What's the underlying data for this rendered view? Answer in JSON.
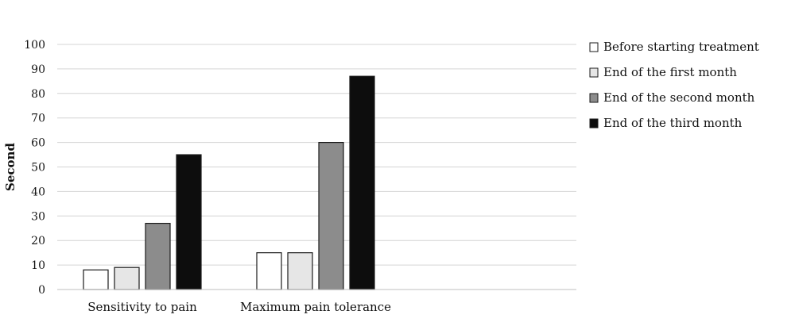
{
  "chart_data": {
    "type": "bar",
    "title": "",
    "xlabel": "",
    "ylabel": "Second",
    "ylim": [
      0,
      100
    ],
    "y_ticks": [
      0,
      10,
      20,
      30,
      40,
      50,
      60,
      70,
      80,
      90,
      100
    ],
    "grid": true,
    "legend_position": "right",
    "categories": [
      "Sensitivity to pain",
      "Maximum pain tolerance"
    ],
    "series": [
      {
        "name": "Before starting treatment",
        "values": [
          8,
          15
        ],
        "color": "#ffffff"
      },
      {
        "name": "End of the first month",
        "values": [
          9,
          15
        ],
        "color": "#e6e6e6"
      },
      {
        "name": "End of the second month",
        "values": [
          27,
          60
        ],
        "color": "#8c8c8c"
      },
      {
        "name": "End of the third month",
        "values": [
          55,
          87
        ],
        "color": "#0d0d0d"
      }
    ]
  }
}
